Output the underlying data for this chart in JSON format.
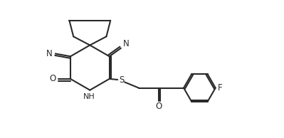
{
  "bg_color": "#ffffff",
  "line_color": "#2a2a2a",
  "lw": 1.5,
  "figsize": [
    3.99,
    1.94
  ],
  "dpi": 100,
  "xlim": [
    0,
    10
  ],
  "ylim": [
    0,
    5
  ]
}
